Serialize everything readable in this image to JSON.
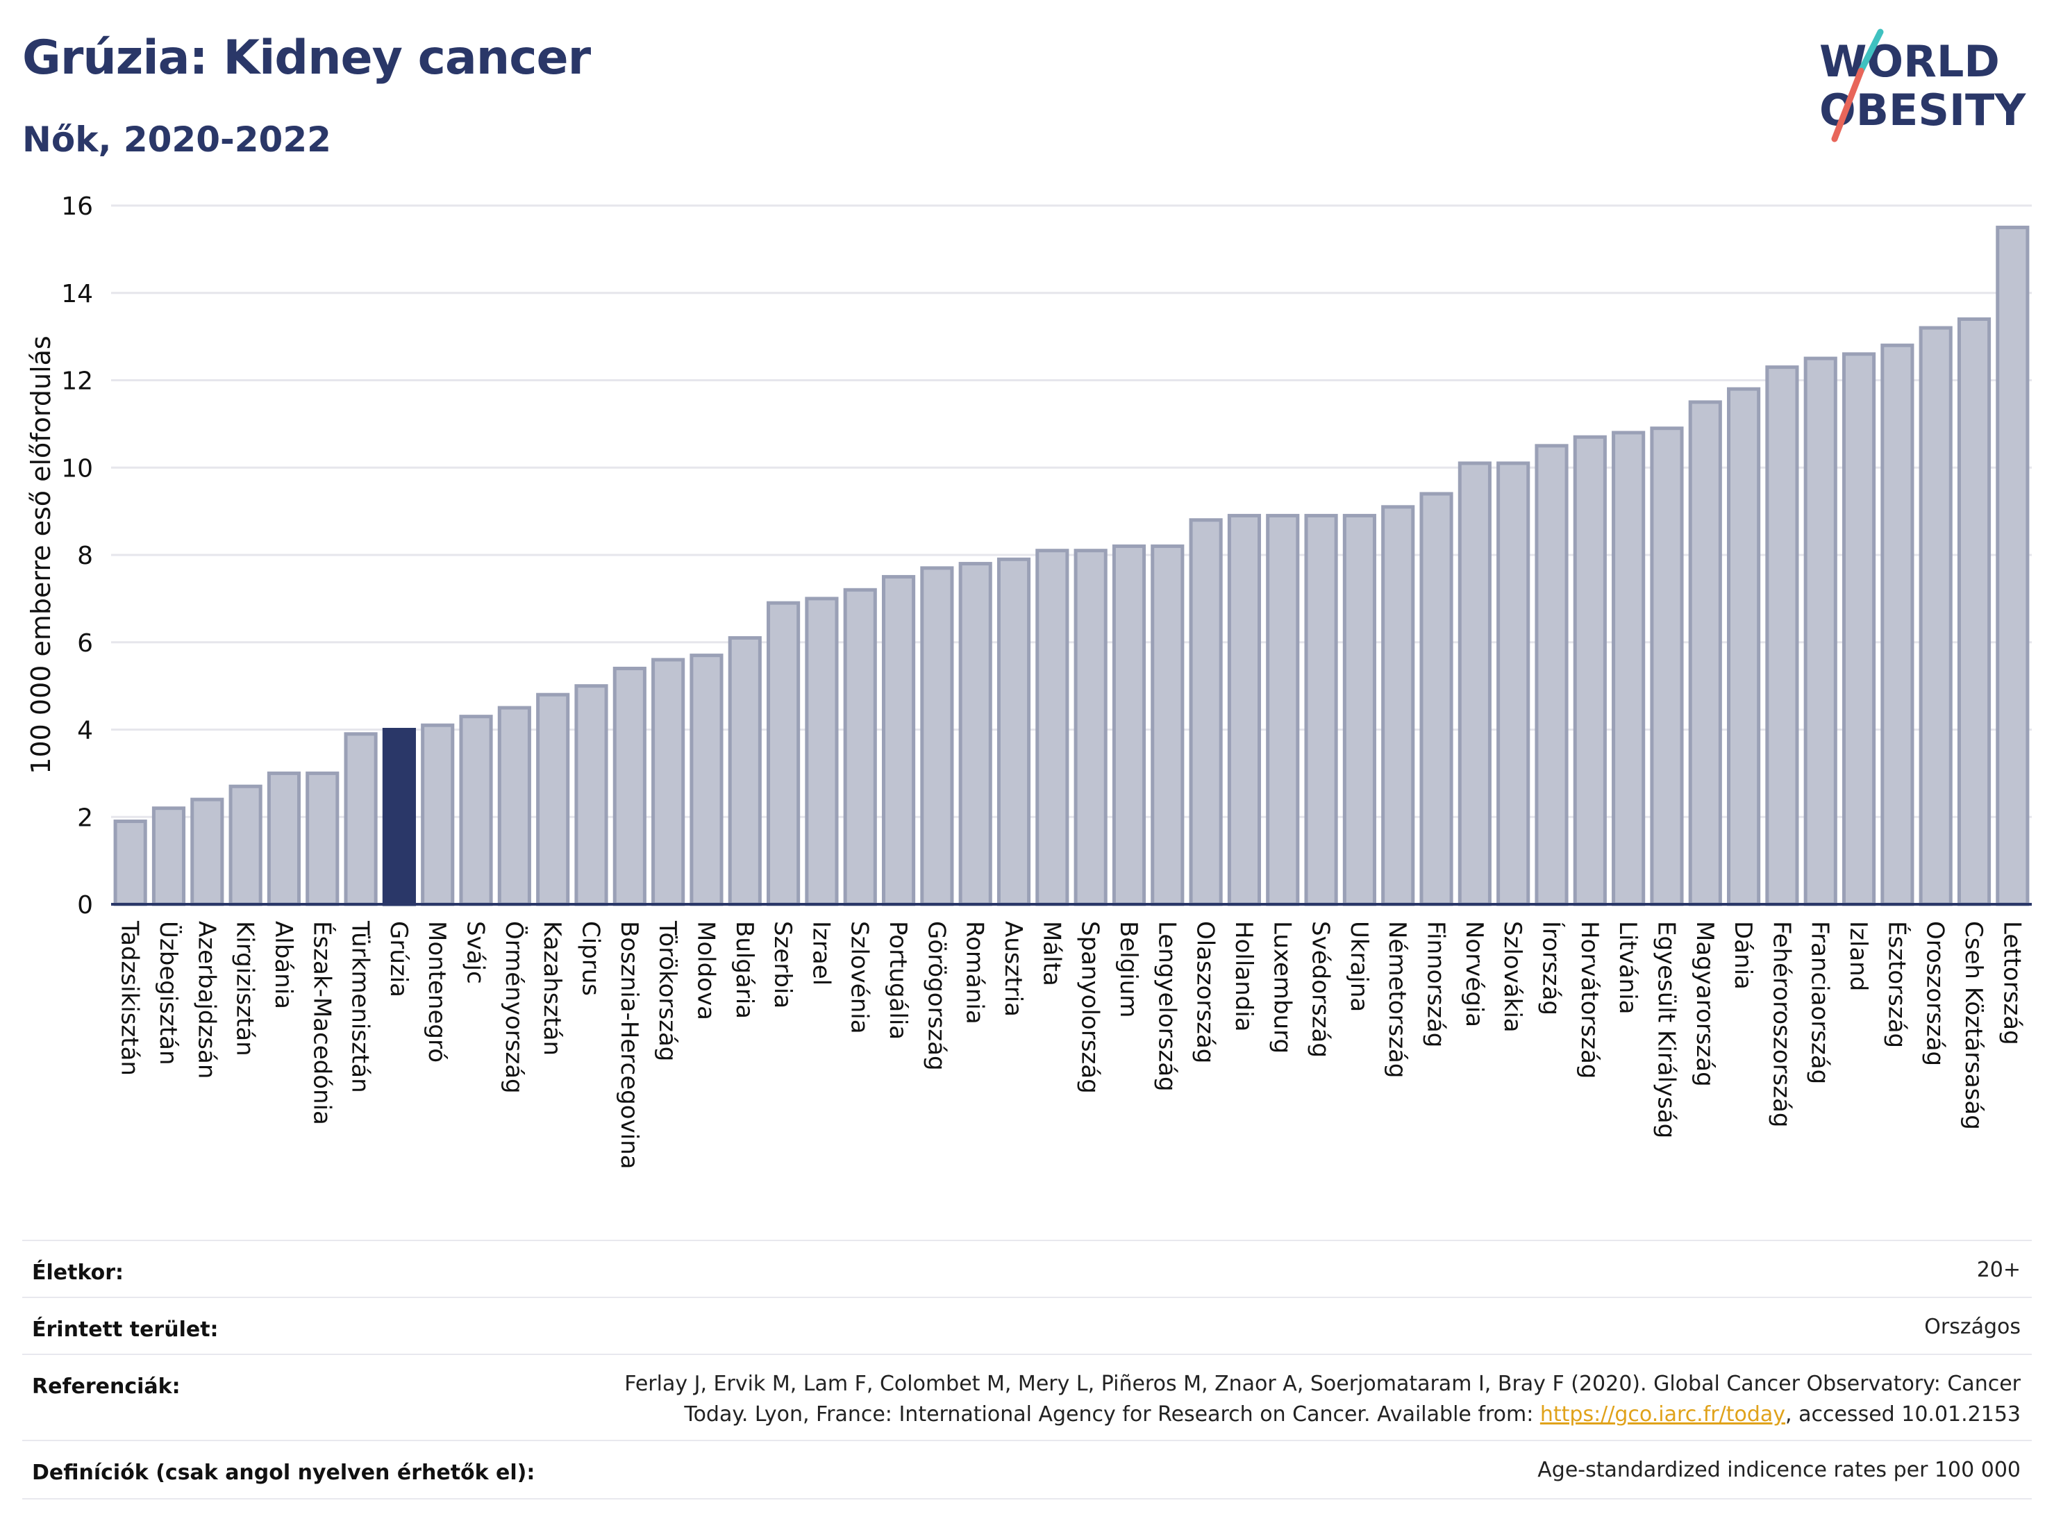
{
  "header": {
    "title": "Grúzia: Kidney cancer",
    "subtitle": "Nők, 2020-2022"
  },
  "logo": {
    "line1": "WORLD",
    "line2": "OBESITY",
    "accent_colors": [
      "#3fc1c0",
      "#e8665a"
    ]
  },
  "colors": {
    "bar": "#bfc3d1",
    "bar_border": "#9aa0b6",
    "highlight": "#2a3768",
    "grid": "#e6e6ec",
    "axis_text": "#111111"
  },
  "chart_data": {
    "type": "bar",
    "title": "",
    "xlabel": "",
    "ylabel": "100 000 emberre eső előfordulás",
    "ylim": [
      0,
      16
    ],
    "yticks": [
      0,
      2,
      4,
      6,
      8,
      10,
      12,
      14,
      16
    ],
    "grid": true,
    "highlight": "Grúzia",
    "categories": [
      "Tadzsikisztán",
      "Üzbegisztán",
      "Azerbajdzsán",
      "Kirgizisztán",
      "Albánia",
      "Észak-Macedónia",
      "Türkmenisztán",
      "Grúzia",
      "Montenegró",
      "Svájc",
      "Örményország",
      "Kazahsztán",
      "Ciprus",
      "Bosznia-Hercegovina",
      "Törökország",
      "Moldova",
      "Bulgária",
      "Szerbia",
      "Izrael",
      "Szlovénia",
      "Portugália",
      "Görögország",
      "Románia",
      "Ausztria",
      "Málta",
      "Spanyolország",
      "Belgium",
      "Lengyelország",
      "Olaszország",
      "Hollandia",
      "Luxemburg",
      "Svédország",
      "Ukrajna",
      "Németország",
      "Finnország",
      "Norvégia",
      "Szlovákia",
      "Írország",
      "Horvátország",
      "Litvánia",
      "Egyesült Királyság",
      "Magyarország",
      "Dánia",
      "Fehéroroszország",
      "Franciaország",
      "Izland",
      "Észtország",
      "Oroszország",
      "Cseh Köztársaság",
      "Lettország"
    ],
    "values": [
      1.9,
      2.2,
      2.4,
      2.7,
      3.0,
      3.0,
      3.9,
      4.0,
      4.1,
      4.3,
      4.5,
      4.8,
      5.0,
      5.4,
      5.6,
      5.7,
      6.1,
      6.9,
      7.0,
      7.2,
      7.5,
      7.7,
      7.8,
      7.9,
      8.1,
      8.1,
      8.2,
      8.2,
      8.8,
      8.9,
      8.9,
      8.9,
      8.9,
      9.1,
      9.4,
      10.1,
      10.1,
      10.5,
      10.7,
      10.8,
      10.9,
      11.5,
      11.8,
      12.3,
      12.5,
      12.6,
      12.8,
      13.2,
      13.4,
      15.5
    ]
  },
  "meta": {
    "age_label": "Életkor:",
    "age_value": "20+",
    "area_label": "Érintett terület:",
    "area_value": "Országos",
    "ref_label": "Referenciák:",
    "ref_line1": "Ferlay J, Ervik M, Lam F, Colombet M, Mery L, Piñeros M, Znaor A, Soerjomataram I, Bray F (2020). Global Cancer Observatory: Cancer",
    "ref_line2_pre": "Today. Lyon, France: International Agency for Research on Cancer. Available from: ",
    "ref_link": "https://gco.iarc.fr/today",
    "ref_line2_post": ", accessed 10.01.2153",
    "def_label": "Definíciók (csak angol nyelven érhetők el):",
    "def_value": "Age-standardized indicence rates per 100 000"
  }
}
